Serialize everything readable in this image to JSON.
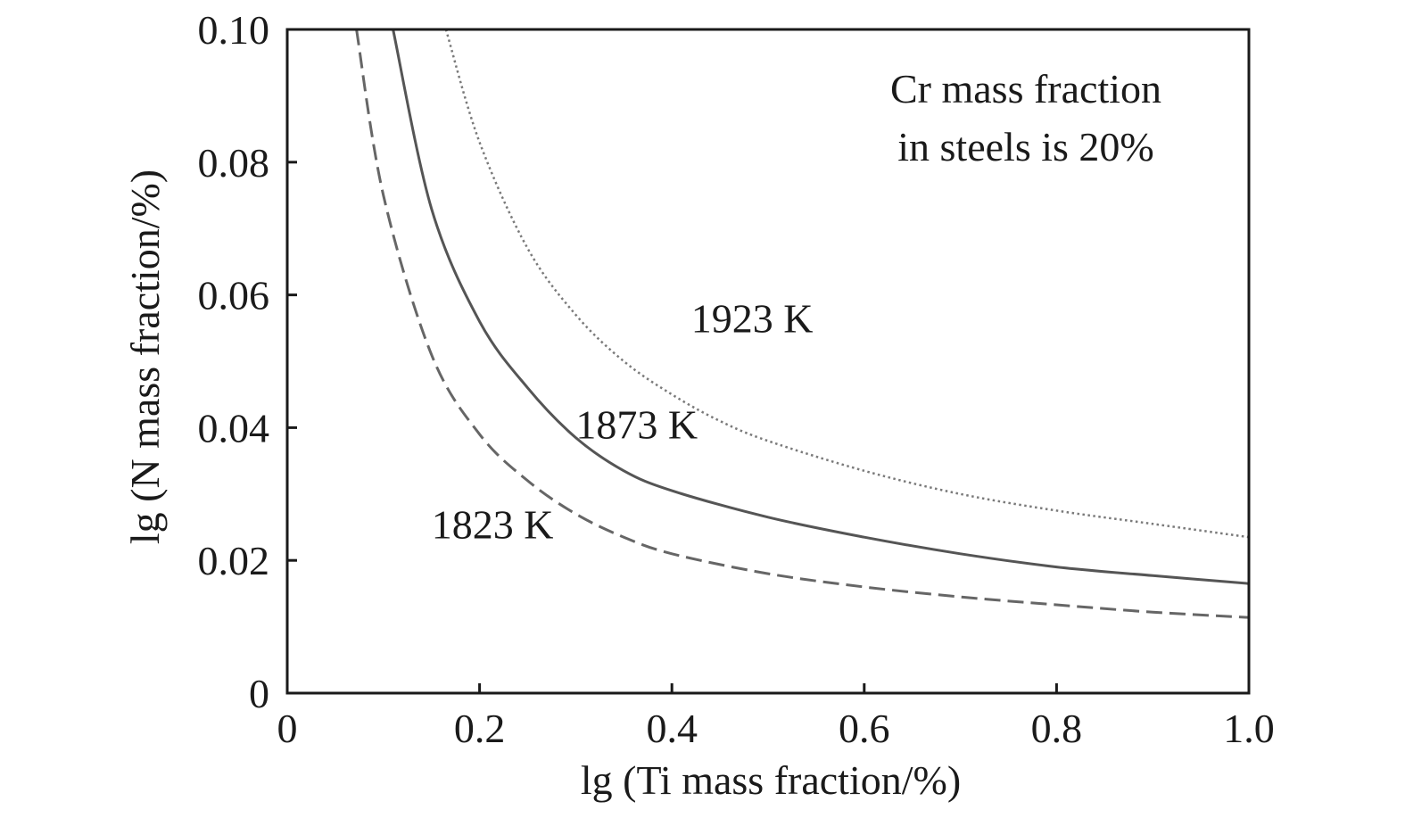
{
  "chart_data": {
    "type": "line",
    "xlabel": "lg (Ti mass fraction/%)",
    "ylabel": "lg (N mass fraction/%)",
    "xlim": [
      0,
      1.0
    ],
    "ylim": [
      0,
      0.1
    ],
    "grid": false,
    "legend": "none",
    "x_ticks": [
      "0",
      "0.2",
      "0.4",
      "0.6",
      "0.8",
      "1.0"
    ],
    "y_ticks": [
      "0",
      "0.02",
      "0.04",
      "0.06",
      "0.08",
      "0.10"
    ],
    "annotation": [
      "Cr mass fraction",
      "in steels is 20%"
    ],
    "series": [
      {
        "name": "1923 K",
        "line_style": "dotted",
        "color": "#7a7a7a",
        "x": [
          0.165,
          0.2,
          0.25,
          0.3,
          0.35,
          0.4,
          0.45,
          0.5,
          0.6,
          0.7,
          0.8,
          0.9,
          1.0
        ],
        "y": [
          0.1,
          0.083,
          0.067,
          0.057,
          0.05,
          0.045,
          0.041,
          0.038,
          0.0335,
          0.03,
          0.0275,
          0.0255,
          0.0235
        ]
      },
      {
        "name": "1873 K",
        "line_style": "solid",
        "color": "#555555",
        "x": [
          0.11,
          0.15,
          0.2,
          0.25,
          0.3,
          0.35,
          0.4,
          0.5,
          0.6,
          0.7,
          0.8,
          0.9,
          1.0
        ],
        "y": [
          0.1,
          0.073,
          0.056,
          0.046,
          0.0385,
          0.0335,
          0.0305,
          0.0265,
          0.0235,
          0.021,
          0.019,
          0.0177,
          0.0165
        ]
      },
      {
        "name": "1823 K",
        "line_style": "dashed",
        "color": "#666666",
        "x": [
          0.072,
          0.1,
          0.15,
          0.2,
          0.25,
          0.3,
          0.35,
          0.4,
          0.5,
          0.6,
          0.7,
          0.8,
          0.9,
          1.0
        ],
        "y": [
          0.1,
          0.075,
          0.051,
          0.039,
          0.032,
          0.027,
          0.0235,
          0.021,
          0.018,
          0.016,
          0.0145,
          0.0133,
          0.0122,
          0.0114
        ]
      }
    ],
    "curve_labels": [
      {
        "text": "1923 K",
        "x": 0.42,
        "y": 0.0565
      },
      {
        "text": "1873 K",
        "x": 0.3,
        "y": 0.0405
      },
      {
        "text": "1823 K",
        "x": 0.15,
        "y": 0.0255
      }
    ]
  }
}
